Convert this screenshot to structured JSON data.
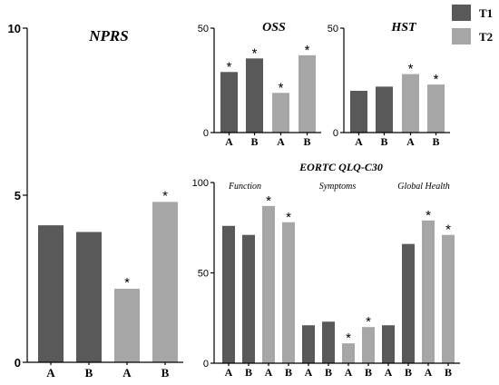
{
  "colors": {
    "T1": "#595959",
    "T2": "#a6a6a6"
  },
  "legend": [
    {
      "label": "T1",
      "color": "#595959"
    },
    {
      "label": "T2",
      "color": "#a6a6a6"
    }
  ],
  "chart_data": [
    {
      "type": "bar",
      "title": "NPRS",
      "categories": [
        "A",
        "B",
        "A",
        "B"
      ],
      "series_of_bar": [
        "T1",
        "T1",
        "T2",
        "T2"
      ],
      "values": [
        4.1,
        3.9,
        2.2,
        4.8
      ],
      "significant": [
        false,
        false,
        true,
        true
      ],
      "ylim": [
        0,
        10
      ],
      "yticks": [
        0,
        5,
        10
      ]
    },
    {
      "type": "bar",
      "title": "OSS",
      "categories": [
        "A",
        "B",
        "A",
        "B"
      ],
      "series_of_bar": [
        "T1",
        "T1",
        "T2",
        "T2"
      ],
      "values": [
        29,
        35.5,
        19,
        37
      ],
      "significant": [
        true,
        true,
        true,
        true
      ],
      "ylim": [
        0,
        50
      ],
      "yticks": [
        0,
        50
      ]
    },
    {
      "type": "bar",
      "title": "HST",
      "categories": [
        "A",
        "B",
        "A",
        "B"
      ],
      "series_of_bar": [
        "T1",
        "T1",
        "T2",
        "T2"
      ],
      "values": [
        20,
        22,
        28,
        23
      ],
      "significant": [
        false,
        false,
        true,
        true
      ],
      "ylim": [
        0,
        50
      ],
      "yticks": [
        0,
        50
      ]
    },
    {
      "type": "bar",
      "title": "EORTC QLQ-C30",
      "groups": [
        "Function",
        "Symptoms",
        "Global Health"
      ],
      "categories": [
        "A",
        "B",
        "A",
        "B",
        "A",
        "B",
        "A",
        "B",
        "A",
        "B",
        "A",
        "B"
      ],
      "series_of_bar": [
        "T1",
        "T1",
        "T2",
        "T2",
        "T1",
        "T1",
        "T2",
        "T2",
        "T1",
        "T1",
        "T2",
        "T2"
      ],
      "values": [
        76,
        71,
        87,
        78,
        21,
        23,
        11,
        20,
        21,
        66,
        79,
        71
      ],
      "significant": [
        false,
        false,
        true,
        true,
        false,
        false,
        true,
        true,
        false,
        false,
        true,
        true
      ],
      "ylim": [
        0,
        100
      ],
      "yticks": [
        0,
        50,
        100
      ]
    }
  ]
}
